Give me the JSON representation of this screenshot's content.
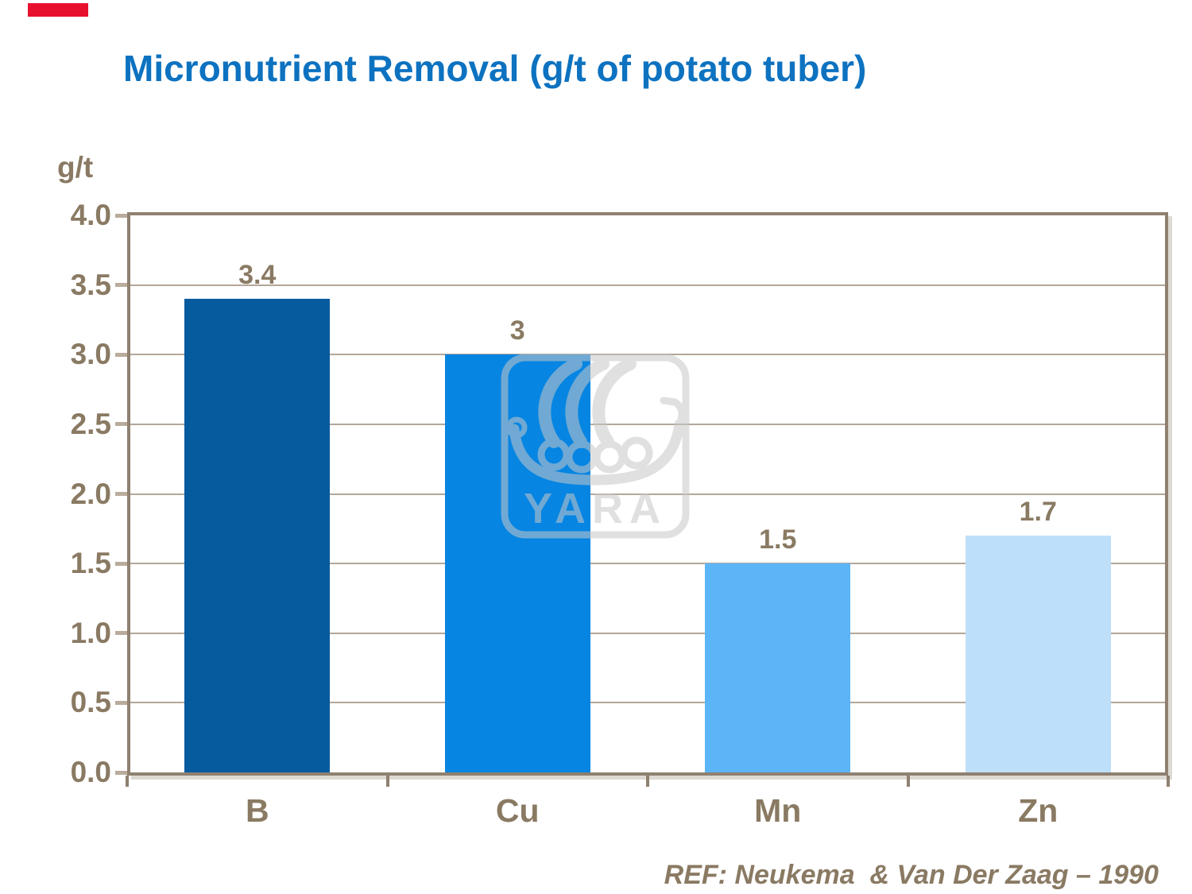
{
  "slide": {
    "title": "Micronutrient Removal (g/t of potato tuber)",
    "title_color": "#0d72c0",
    "accent_mark_color": "#e8112d",
    "text_color": "#8a7a63",
    "reference": "REF: Neukema  & Van Der Zaag – 1990"
  },
  "chart_data": {
    "type": "bar",
    "title": "Micronutrient Removal (g/t of potato tuber)",
    "ylabel": "g/t",
    "xlabel": "",
    "categories": [
      "B",
      "Cu",
      "Mn",
      "Zn"
    ],
    "values": [
      3.4,
      3,
      1.5,
      1.7
    ],
    "value_labels": [
      "3.4",
      "3",
      "1.5",
      "1.7"
    ],
    "bar_colors": [
      "#065a9e",
      "#0685e2",
      "#5cb5f7",
      "#bedff9"
    ],
    "ylim": [
      0,
      4
    ],
    "ytick_step": 0.5,
    "ytick_labels": [
      "4.0",
      "3.5",
      "3.0",
      "2.5",
      "2.0",
      "1.5",
      "1.0",
      "0.5",
      "0.0"
    ],
    "grid": true,
    "legend_position": "none",
    "frame_color": "#8f8070",
    "gridline_color": "#b3a79a",
    "tick_color": "#b9ac9c"
  },
  "watermark": {
    "text": "YARA",
    "icon": "viking-ship-icon",
    "color": "#c8c8c8",
    "opacity": 0.55
  }
}
